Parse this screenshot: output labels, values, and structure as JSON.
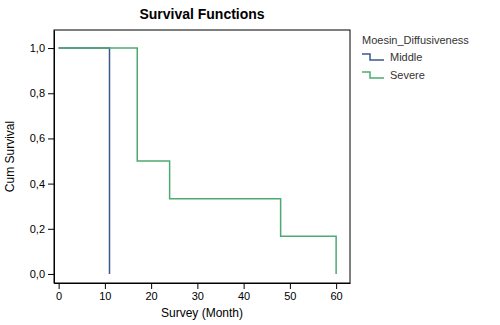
{
  "chart_data": {
    "type": "step",
    "title": "Survival Functions",
    "x_label": "Survey (Month)",
    "y_label": "Cum Survival",
    "legend_title": "Moesin_Diffusiveness",
    "legend": "right",
    "grid": false,
    "xlim": [
      -1,
      63
    ],
    "ylim": [
      -0.04,
      1.08
    ],
    "xticks": [
      0,
      10,
      20,
      30,
      40,
      50,
      60
    ],
    "yticks": [
      {
        "value": 0.0,
        "label": "0,0"
      },
      {
        "value": 0.2,
        "label": "0,2"
      },
      {
        "value": 0.4,
        "label": "0,4"
      },
      {
        "value": 0.6,
        "label": "0,6"
      },
      {
        "value": 0.8,
        "label": "0,8"
      },
      {
        "value": 1.0,
        "label": "1,0"
      }
    ],
    "series": [
      {
        "name": "Middle",
        "color": "#3a5a8c",
        "x": [
          0,
          11,
          11
        ],
        "values": [
          1.0,
          1.0,
          0.0
        ]
      },
      {
        "name": "Severe",
        "color": "#4daa70",
        "x": [
          0,
          11,
          17,
          24,
          24,
          48,
          48,
          60,
          60
        ],
        "values": [
          1.0,
          1.0,
          0.5,
          0.5,
          0.333,
          0.333,
          0.167,
          0.167,
          0.0
        ]
      }
    ]
  }
}
